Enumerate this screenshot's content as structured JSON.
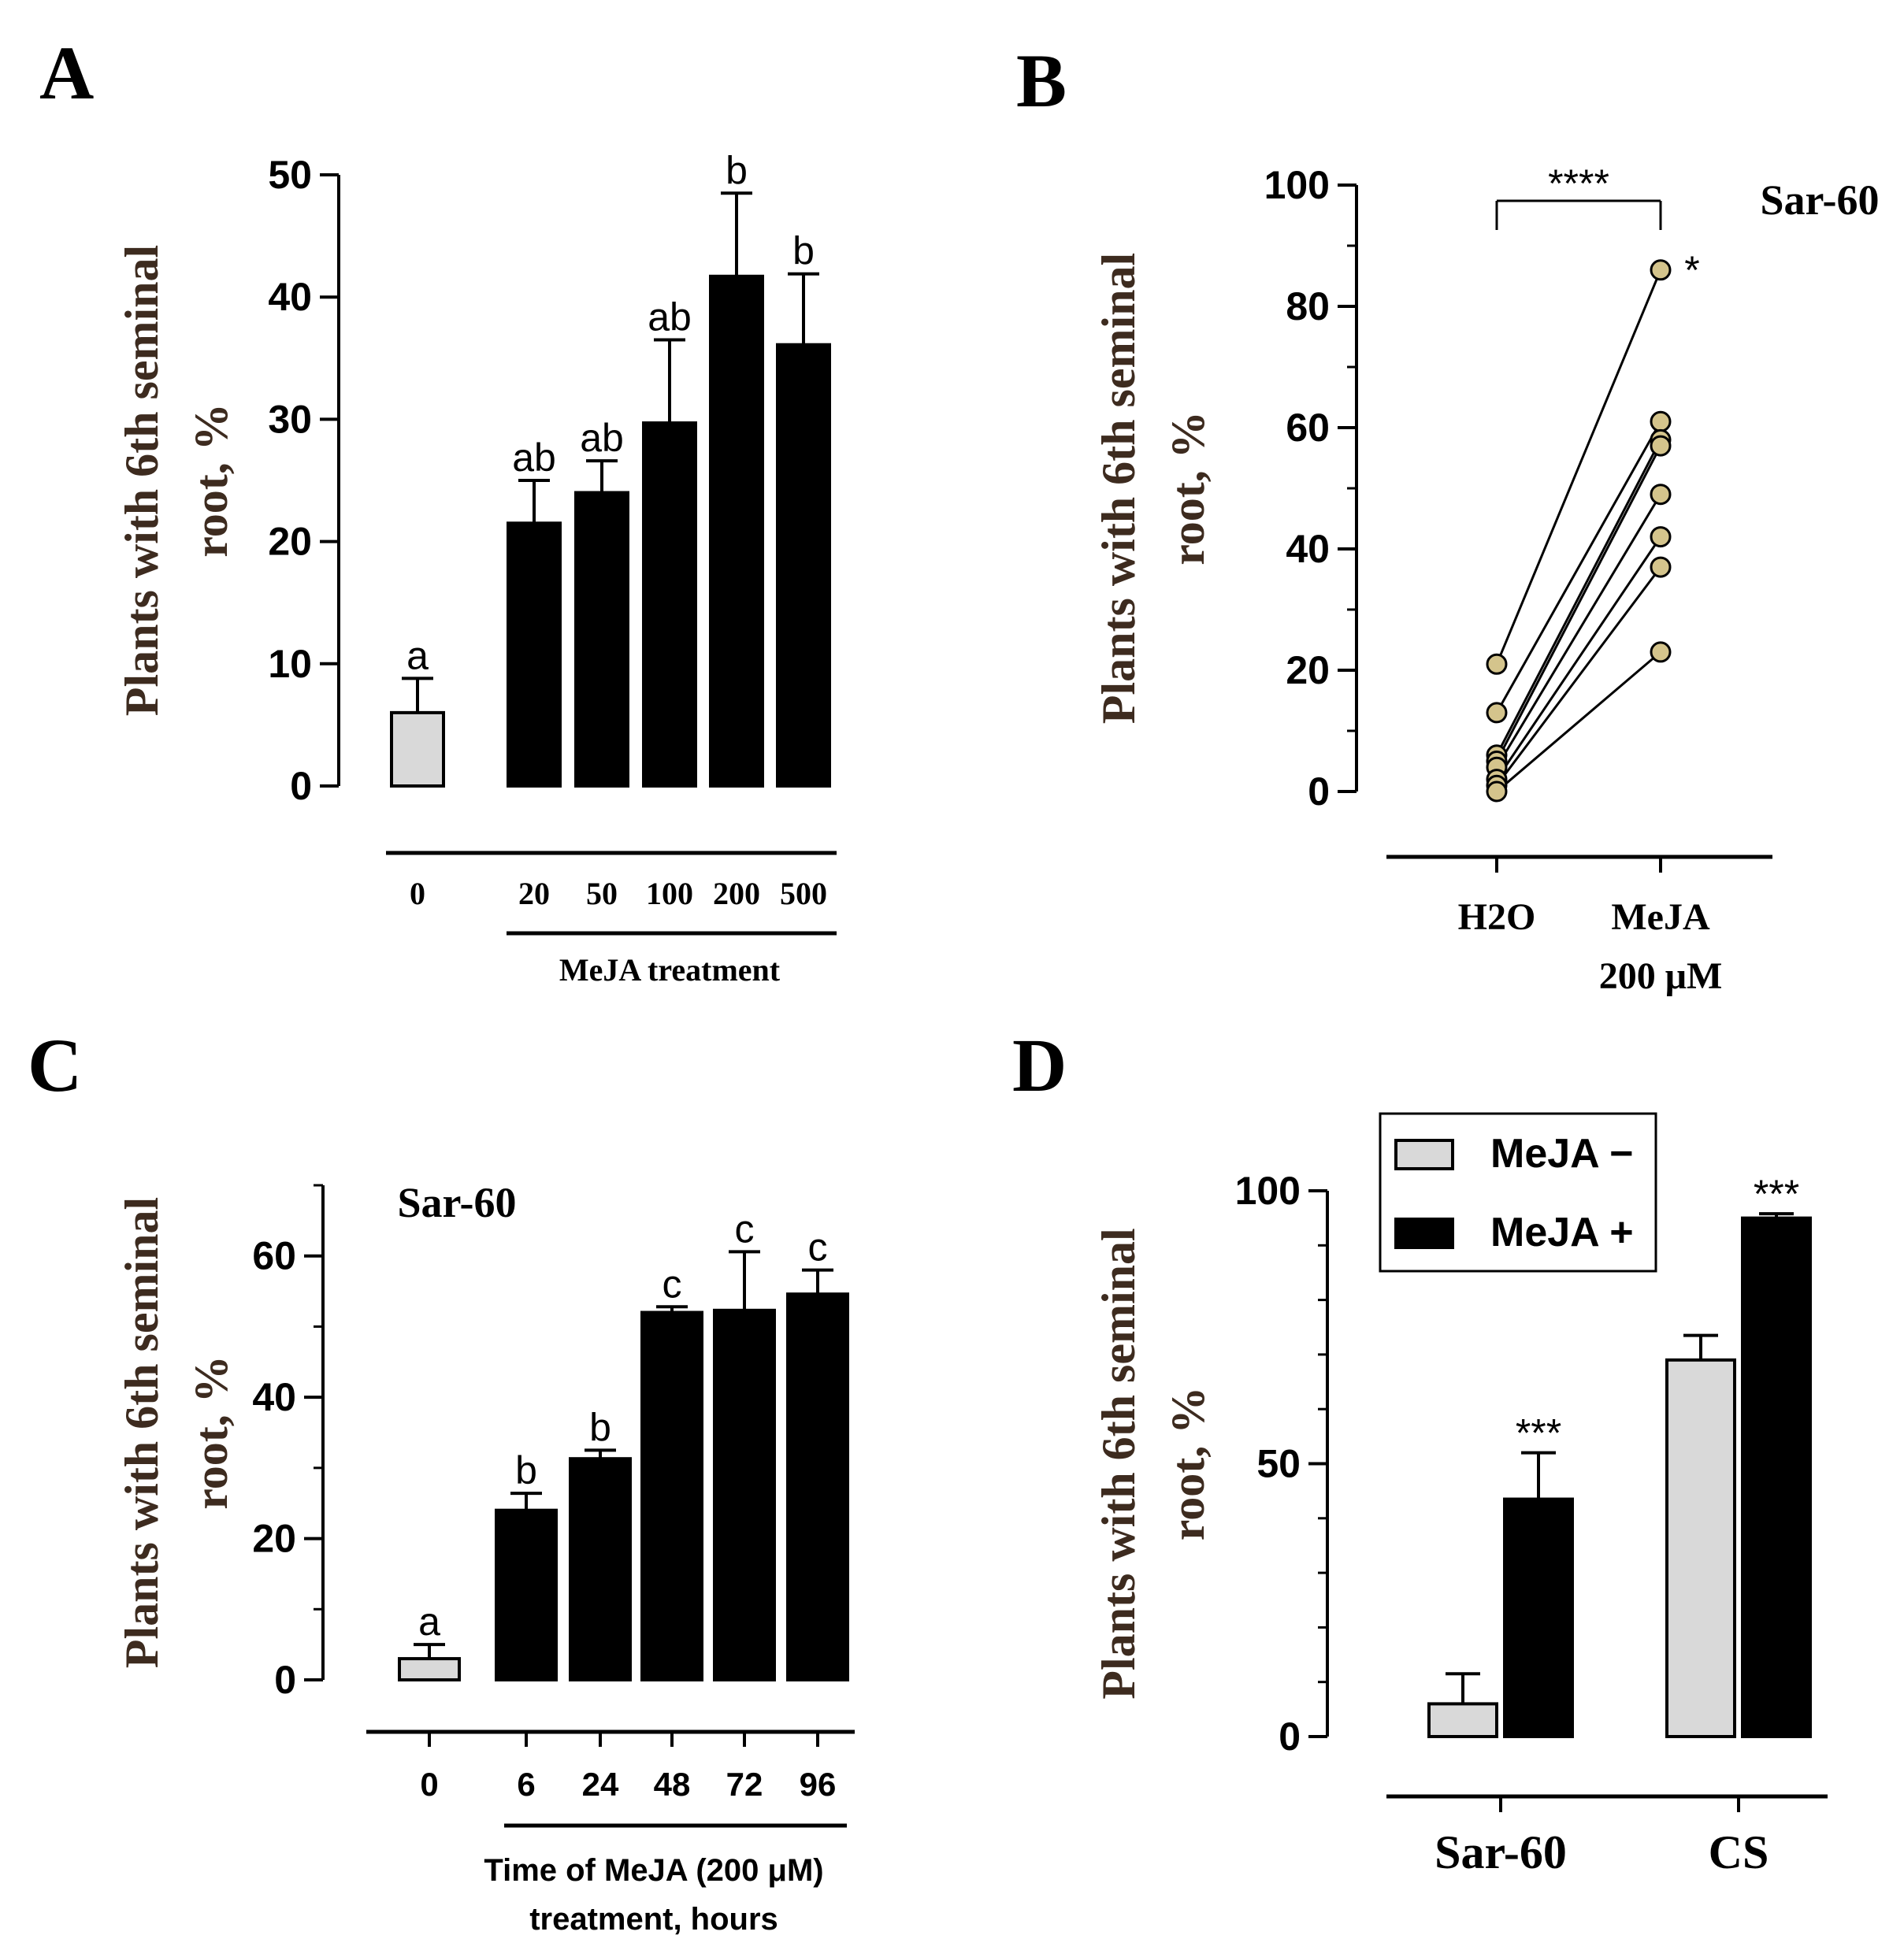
{
  "figure": {
    "panels": [
      "A",
      "B",
      "C",
      "D"
    ]
  },
  "chart_data": [
    {
      "panel": "A",
      "type": "bar",
      "ylabel_line1": "Plants with 6th seminal",
      "ylabel_line2": "root, %",
      "ylim": [
        0,
        50
      ],
      "yticks": [
        0,
        10,
        20,
        30,
        40,
        50
      ],
      "categories": [
        "0",
        "20",
        "50",
        "100",
        "200",
        "500"
      ],
      "values": [
        6,
        21.5,
        24,
        29.7,
        41.7,
        36.1
      ],
      "errors": [
        2.8,
        3.5,
        2.6,
        6.8,
        6.8,
        5.8
      ],
      "letters": [
        "a",
        "ab",
        "ab",
        "ab",
        "b",
        "b"
      ],
      "colors": [
        "#d9d9d9",
        "#000000",
        "#000000",
        "#000000",
        "#000000",
        "#000000"
      ],
      "group_label": "MeJA treatment"
    },
    {
      "panel": "B",
      "type": "scatter",
      "subtitle": "Sar-60",
      "ylabel_line1": "Plants with 6th seminal",
      "ylabel_line2": "root, %",
      "ylim": [
        0,
        100
      ],
      "yticks": [
        0,
        20,
        40,
        60,
        80,
        100
      ],
      "categories": [
        "H2O",
        "MeJA"
      ],
      "category_sub": "200 μM",
      "pairs": [
        [
          21,
          86
        ],
        [
          13,
          61
        ],
        [
          6,
          58
        ],
        [
          5,
          57
        ],
        [
          4,
          49
        ],
        [
          2,
          42
        ],
        [
          1,
          37
        ],
        [
          0,
          23
        ]
      ],
      "significance": "****",
      "point_annotation": "*",
      "point_color": "#d4c48c"
    },
    {
      "panel": "C",
      "type": "bar",
      "subtitle": "Sar-60",
      "ylabel_line1": "Plants with 6th seminal",
      "ylabel_line2": "root, %",
      "ylim": [
        0,
        70
      ],
      "yticks": [
        0,
        20,
        40,
        60
      ],
      "categories": [
        "0",
        "6",
        "24",
        "48",
        "72",
        "96"
      ],
      "values": [
        3,
        24,
        31.3,
        52,
        52.3,
        54.6
      ],
      "errors": [
        2,
        2.4,
        1.2,
        0.8,
        8.3,
        3.4
      ],
      "letters": [
        "a",
        "b",
        "b",
        "c",
        "c",
        "c"
      ],
      "colors": [
        "#d9d9d9",
        "#000000",
        "#000000",
        "#000000",
        "#000000",
        "#000000"
      ],
      "group_label_line1": "Time of MeJA (200 μM)",
      "group_label_line2": "treatment, hours"
    },
    {
      "panel": "D",
      "type": "bar",
      "ylabel_line1": "Plants with 6th seminal",
      "ylabel_line2": "root, %",
      "ylim": [
        0,
        100
      ],
      "yticks": [
        0,
        50,
        100
      ],
      "categories": [
        "Sar-60",
        "CS"
      ],
      "series": [
        {
          "name": "MeJA −",
          "values": [
            6,
            69
          ],
          "errors": [
            5.5,
            4.5
          ],
          "color": "#d9d9d9"
        },
        {
          "name": "MeJA +",
          "values": [
            43.5,
            95
          ],
          "errors": [
            8.5,
            0.8
          ],
          "color": "#000000"
        }
      ],
      "significance": [
        "",
        "***",
        "",
        "***"
      ],
      "legend": "top-left"
    }
  ]
}
